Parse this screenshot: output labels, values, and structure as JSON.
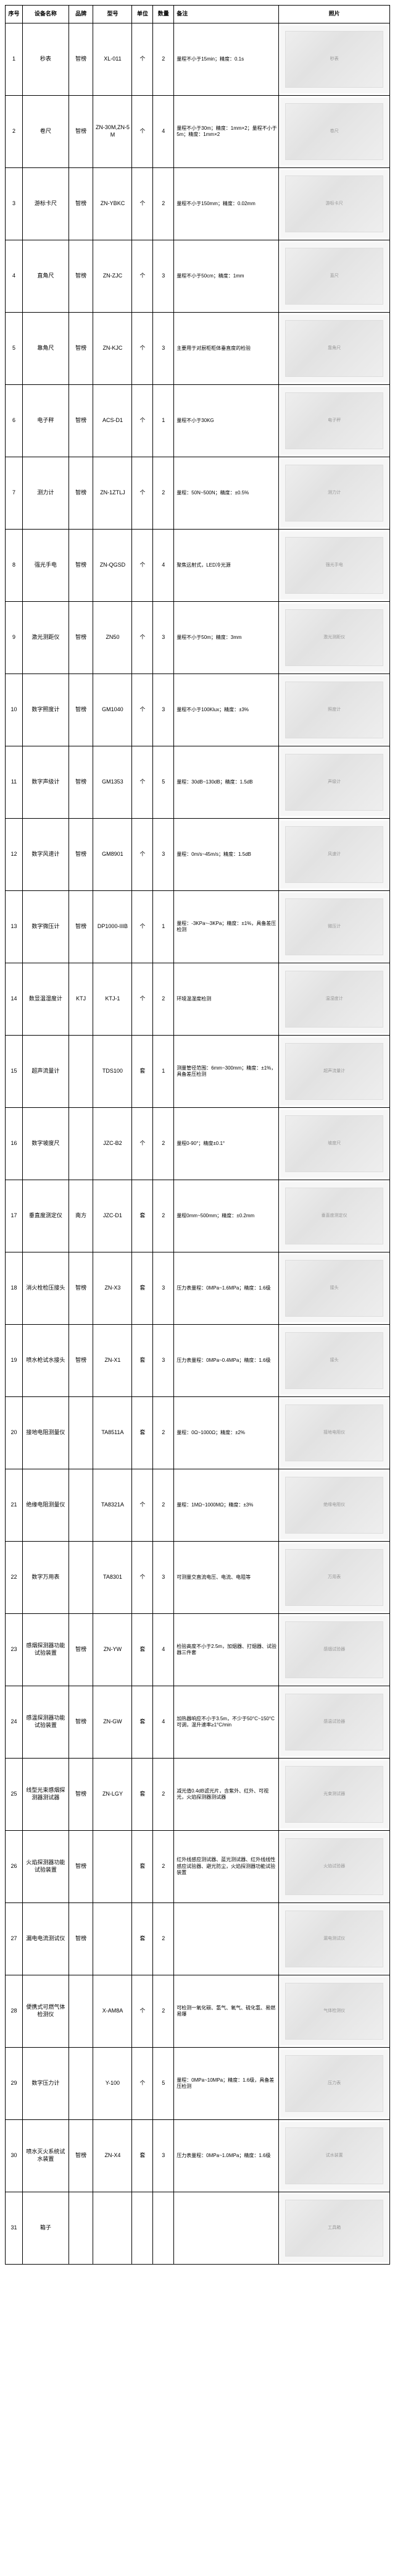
{
  "headers": {
    "idx": "序号",
    "name": "设备名称",
    "brand": "品牌",
    "model": "型号",
    "unit": "单位",
    "qty": "数量",
    "remark": "备注",
    "photo": "照片"
  },
  "rows": [
    {
      "idx": "1",
      "name": "秒表",
      "brand": "智榜",
      "model": "XL-011",
      "unit": "个",
      "qty": "2",
      "remark": "量程不小于15min；精度：0.1s",
      "photo": "秒表"
    },
    {
      "idx": "2",
      "name": "卷尺",
      "brand": "智榜",
      "model": "ZN-30M,ZN-5M",
      "unit": "个",
      "qty": "4",
      "remark": "量程不小于30m；精度：1mm×2；量程不小于5m；精度：1mm×2",
      "photo": "卷尺"
    },
    {
      "idx": "3",
      "name": "游标卡尺",
      "brand": "智榜",
      "model": "ZN-YBKC",
      "unit": "个",
      "qty": "2",
      "remark": "量程不小于150mm；精度：0.02mm",
      "photo": "游标卡尺"
    },
    {
      "idx": "4",
      "name": "直角尺",
      "brand": "智榜",
      "model": "ZN-ZJC",
      "unit": "个",
      "qty": "3",
      "remark": "量程不小于50cm；精度：1mm",
      "photo": "直尺"
    },
    {
      "idx": "5",
      "name": "靠角尺",
      "brand": "智榜",
      "model": "ZN-KJC",
      "unit": "个",
      "qty": "3",
      "remark": "主要用于对厨柜柜体垂直度的检验",
      "photo": "靠角尺"
    },
    {
      "idx": "6",
      "name": "电子秤",
      "brand": "智榜",
      "model": "ACS-D1",
      "unit": "个",
      "qty": "1",
      "remark": "量程不小于30KG",
      "photo": "电子秤"
    },
    {
      "idx": "7",
      "name": "测力计",
      "brand": "智榜",
      "model": "ZN-1ZTLJ",
      "unit": "个",
      "qty": "2",
      "remark": "量程：50N~500N；精度：±0.5%",
      "photo": "测力计"
    },
    {
      "idx": "8",
      "name": "强光手电",
      "brand": "智榜",
      "model": "ZN-QGSD",
      "unit": "个",
      "qty": "4",
      "remark": "聚焦远射式，LED冷光源",
      "photo": "强光手电"
    },
    {
      "idx": "9",
      "name": "激光测距仪",
      "brand": "智榜",
      "model": "ZN50",
      "unit": "个",
      "qty": "3",
      "remark": "量程不小于50m；精度：3mm",
      "photo": "激光测距仪"
    },
    {
      "idx": "10",
      "name": "数字照度计",
      "brand": "智榜",
      "model": "GM1040",
      "unit": "个",
      "qty": "3",
      "remark": "量程不小于100Klux；精度：±3%",
      "photo": "照度计"
    },
    {
      "idx": "11",
      "name": "数字声级计",
      "brand": "智榜",
      "model": "GM1353",
      "unit": "个",
      "qty": "5",
      "remark": "量程：30dB~130dB；精度：1.5dB",
      "photo": "声级计"
    },
    {
      "idx": "12",
      "name": "数字风速计",
      "brand": "智榜",
      "model": "GM8901",
      "unit": "个",
      "qty": "3",
      "remark": "量程：0m/s~45m/s；精度：1.5dB",
      "photo": "风速计"
    },
    {
      "idx": "13",
      "name": "数字微压计",
      "brand": "智榜",
      "model": "DP1000-IIIB",
      "unit": "个",
      "qty": "1",
      "remark": "量程：-3KPa~-3KPa；精度：±1%，具备差压检测",
      "photo": "微压计"
    },
    {
      "idx": "14",
      "name": "数显温湿度计",
      "brand": "KTJ",
      "unit": "个",
      "model": "KTJ-1",
      "qty": "2",
      "remark": "环境温湿度检测",
      "photo": "温湿度计"
    },
    {
      "idx": "15",
      "name": "超声流量计",
      "brand": "",
      "model": "TDS100",
      "unit": "套",
      "qty": "1",
      "remark": "测量管径范围：6mm~300mm；精度：±1%，具备差压检测",
      "photo": "超声流量计"
    },
    {
      "idx": "16",
      "name": "数字坡度尺",
      "brand": "",
      "model": "JZC-B2",
      "unit": "个",
      "qty": "2",
      "remark": "量程0-90°；精度±0.1°",
      "photo": "坡度尺"
    },
    {
      "idx": "17",
      "name": "垂直度测定仪",
      "brand": "南方",
      "model": "JZC-D1",
      "unit": "套",
      "qty": "2",
      "remark": "量程0mm~500mm；精度：±0.2mm",
      "photo": "垂直度测定仪"
    },
    {
      "idx": "18",
      "name": "消火栓检压接头",
      "brand": "智榜",
      "model": "ZN-X3",
      "unit": "套",
      "qty": "3",
      "remark": "压力表量程：0MPa~1.6MPa；精度：1.6级",
      "photo": "接头"
    },
    {
      "idx": "19",
      "name": "喷水枪试水接头",
      "brand": "智榜",
      "model": "ZN-X1",
      "unit": "套",
      "qty": "3",
      "remark": "压力表量程：0MPa~0.4MPa；精度：1.6级",
      "photo": "接头"
    },
    {
      "idx": "20",
      "name": "接地电阻测量仪",
      "brand": "",
      "model": "TA8511A",
      "unit": "套",
      "qty": "2",
      "remark": "量程：0Ω~1000Ω；精度：±2%",
      "photo": "接地电阻仪"
    },
    {
      "idx": "21",
      "name": "绝缘电阻测量仪",
      "brand": "",
      "model": "TA8321A",
      "unit": "个",
      "qty": "2",
      "remark": "量程：1MΩ~1000MΩ；精度：±3%",
      "photo": "绝缘电阻仪"
    },
    {
      "idx": "22",
      "name": "数字万用表",
      "brand": "",
      "model": "TA8301",
      "unit": "个",
      "qty": "3",
      "remark": "可测量交直流电压、电流、电阻等",
      "photo": "万用表"
    },
    {
      "idx": "23",
      "name": "感烟探测器功能试验装置",
      "brand": "智榜",
      "model": "ZN-YW",
      "unit": "套",
      "qty": "4",
      "remark": "检验高度不小于2.5m，加烟器、打烟器、试验器三件套",
      "photo": "感烟试验器"
    },
    {
      "idx": "24",
      "name": "感温探测器功能试验装置",
      "brand": "智榜",
      "model": "ZN-GW",
      "unit": "套",
      "qty": "4",
      "remark": "加热器响应不小于3.5m，不少于50°C~150°C可调，温升速率≥1°C/min",
      "photo": "感温试验器"
    },
    {
      "idx": "25",
      "name": "线型光束感烟探测器测试器",
      "brand": "智榜",
      "model": "ZN-LGY",
      "unit": "套",
      "qty": "2",
      "remark": "减光值0.4dB滤光片，含紫外、红外、可视光，火焰探测器测试器",
      "photo": "光束测试器"
    },
    {
      "idx": "26",
      "name": "火焰探测器功能试验装置",
      "brand": "智榜",
      "model": "",
      "unit": "套",
      "qty": "2",
      "remark": "红外线感应测试器、蓝光测试器、红外线线性感应试验器、避光防尘，火焰探测器功能试验装置",
      "photo": "火焰试验器"
    },
    {
      "idx": "27",
      "name": "漏电电流测试仪",
      "brand": "智榜",
      "model": "",
      "unit": "套",
      "qty": "2",
      "remark": "",
      "photo": "漏电测试仪"
    },
    {
      "idx": "28",
      "name": "便携式可燃气体检测仪",
      "brand": "",
      "model": "X-AM8A",
      "unit": "个",
      "qty": "2",
      "remark": "可检测一氧化碳、氢气、氧气、硫化氢、易燃易爆",
      "photo": "气体检测仪"
    },
    {
      "idx": "29",
      "name": "数字压力计",
      "brand": "",
      "model": "Y-100",
      "unit": "个",
      "qty": "5",
      "remark": "量程：0MPa~10MPa；精度：1.6级，具备差压检测",
      "photo": "压力表"
    },
    {
      "idx": "30",
      "name": "喷水灭火系统试水装置",
      "brand": "智榜",
      "model": "ZN-X4",
      "unit": "套",
      "qty": "3",
      "remark": "压力表量程：0MPa~1.0MPa；精度：1.6级",
      "photo": "试水装置"
    },
    {
      "idx": "31",
      "name": "箱子",
      "brand": "",
      "model": "",
      "unit": "",
      "qty": "",
      "remark": "",
      "photo": "工具箱"
    }
  ]
}
